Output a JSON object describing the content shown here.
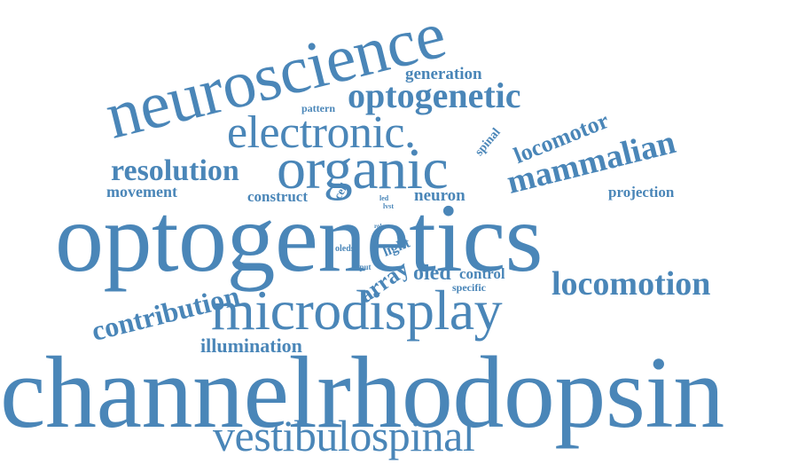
{
  "color": "#4a86b8",
  "background": "#ffffff",
  "words": {
    "neuroscience": "neuroscience",
    "generation": "generation",
    "optogenetic": "optogenetic",
    "pattern": "pattern",
    "electronic": "electronic.",
    "spinal": "spinal",
    "locomotor": "locomotor",
    "mammalian": "mammalian",
    "organic": "organic",
    "resolution": "resolution",
    "movement": "movement",
    "construct": "construct",
    "cell": "cell",
    "led": "led",
    "lvst": "lvst",
    "neuron": "neuron",
    "projection": "projection",
    "optogenetics": "optogenetics",
    "role": "role",
    "light": "light",
    "oleds": "oleds",
    "input": "input",
    "array": "array",
    "oled": "oled",
    "control": "control",
    "specific": "specific",
    "locomotion": "locomotion",
    "contribution": "contribution",
    "microdisplay": "microdisplay",
    "illumination": "illumination",
    "channelrhodopsin": "channelrhodopsin",
    "vestibulospinal": "vestibulospinal"
  }
}
